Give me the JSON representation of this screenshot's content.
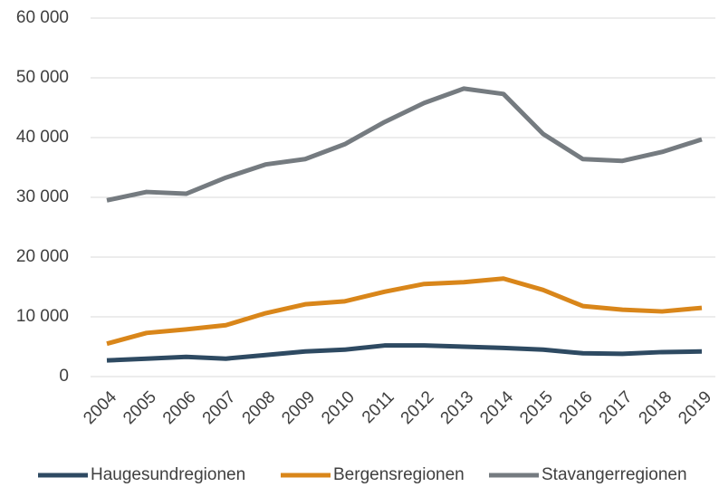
{
  "chart_data": {
    "type": "line",
    "x": [
      2004,
      2005,
      2006,
      2007,
      2008,
      2009,
      2010,
      2011,
      2012,
      2013,
      2014,
      2015,
      2016,
      2017,
      2018,
      2019
    ],
    "series": [
      {
        "name": "Haugesundregionen",
        "color": "#2e4a62",
        "values": [
          2700,
          3000,
          3300,
          3000,
          3600,
          4200,
          4500,
          5200,
          5200,
          5000,
          4800,
          4500,
          3900,
          3800,
          4100,
          4200
        ]
      },
      {
        "name": "Bergensregionen",
        "color": "#d9861a",
        "values": [
          5500,
          7300,
          7900,
          8600,
          10600,
          12100,
          12600,
          14200,
          15500,
          15800,
          16400,
          14500,
          11800,
          11200,
          10900,
          11500
        ]
      },
      {
        "name": "Stavangerregionen",
        "color": "#757b80",
        "values": [
          29500,
          30900,
          30600,
          33300,
          35500,
          36400,
          38900,
          42600,
          45800,
          48200,
          47300,
          40600,
          36400,
          36100,
          37600,
          39700
        ]
      }
    ],
    "ylim": [
      0,
      60000
    ],
    "yticks": [
      0,
      {
        "value": 10000,
        "label": "10 000"
      },
      {
        "value": 20000,
        "label": "20 000"
      },
      {
        "value": 30000,
        "label": "30 000"
      },
      {
        "value": 40000,
        "label": "40 000"
      },
      {
        "value": 50000,
        "label": "50 000"
      },
      {
        "value": 60000,
        "label": "60 000"
      }
    ],
    "grid": true,
    "legend": "bottom"
  }
}
